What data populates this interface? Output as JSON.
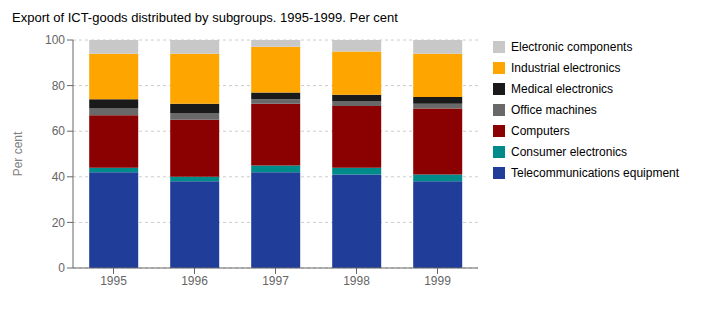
{
  "chart_data": {
    "type": "bar",
    "stacked": true,
    "title": "Export of ICT-goods distributed by subgroups.  1995-1999.  Per cent",
    "ylabel": "Per cent",
    "categories": [
      "1995",
      "1996",
      "1997",
      "1998",
      "1999"
    ],
    "series": [
      {
        "name": "Telecommunications equipment",
        "color": "#1f3d99",
        "values": [
          42,
          38,
          42,
          41,
          38
        ]
      },
      {
        "name": "Consumer electronics",
        "color": "#008b8b",
        "values": [
          2,
          2,
          3,
          3,
          3
        ]
      },
      {
        "name": "Computers",
        "color": "#8b0000",
        "values": [
          23,
          25,
          27,
          27,
          29
        ]
      },
      {
        "name": "Office machines",
        "color": "#696969",
        "values": [
          3,
          3,
          2,
          2,
          2
        ]
      },
      {
        "name": "Medical electronics",
        "color": "#1a1a1a",
        "values": [
          4,
          4,
          3,
          3,
          3
        ]
      },
      {
        "name": "Industrial electronics",
        "color": "#ffa500",
        "values": [
          20,
          22,
          20,
          19,
          19
        ]
      },
      {
        "name": "Electronic components",
        "color": "#c8c8c8",
        "values": [
          6,
          6,
          3,
          5,
          6
        ]
      }
    ],
    "ylim": [
      0,
      100
    ],
    "yticks": [
      0,
      20,
      40,
      60,
      80,
      100
    ],
    "grid": true,
    "legend": "right"
  }
}
